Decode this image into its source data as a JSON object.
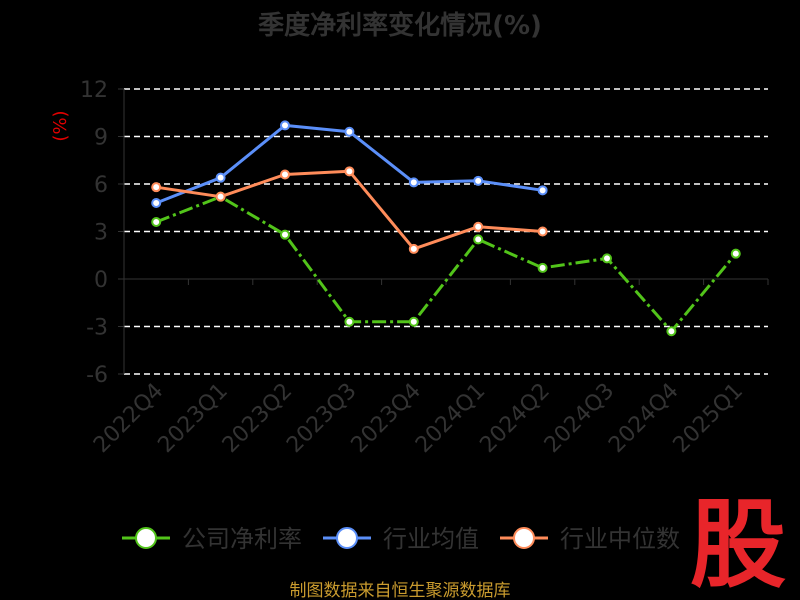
{
  "page_title": "季度净利率变化情况(%)",
  "source": "制图数据来自恒生聚源数据库",
  "logo_text": "股",
  "chart_data": {
    "type": "line",
    "title": "季度净利率变化情况(%)",
    "unit": "(%)",
    "categories": [
      "2022Q4",
      "2023Q1",
      "2023Q2",
      "2023Q3",
      "2023Q4",
      "2024Q1",
      "2024Q2",
      "2024Q3",
      "2024Q4",
      "2025Q1"
    ],
    "ylim": [
      -6,
      12
    ],
    "yticks": [
      12,
      9,
      6,
      3,
      0,
      -3,
      -6
    ],
    "grid": true,
    "legend_position": "bottom",
    "series": [
      {
        "name": "公司净利率",
        "color": "#52c41a",
        "dashed": true,
        "values": [
          3.6,
          5.2,
          2.8,
          -2.7,
          -2.7,
          2.5,
          0.7,
          1.3,
          -3.3,
          1.6
        ]
      },
      {
        "name": "行业均值",
        "color": "#5b8ff9",
        "values": [
          4.8,
          6.4,
          9.7,
          9.3,
          6.1,
          6.2,
          5.6,
          null,
          null,
          null
        ]
      },
      {
        "name": "行业中位数",
        "color": "#ff8c5a",
        "values": [
          5.8,
          5.2,
          6.6,
          6.8,
          1.9,
          3.3,
          3.0,
          null,
          null,
          null
        ]
      }
    ]
  }
}
